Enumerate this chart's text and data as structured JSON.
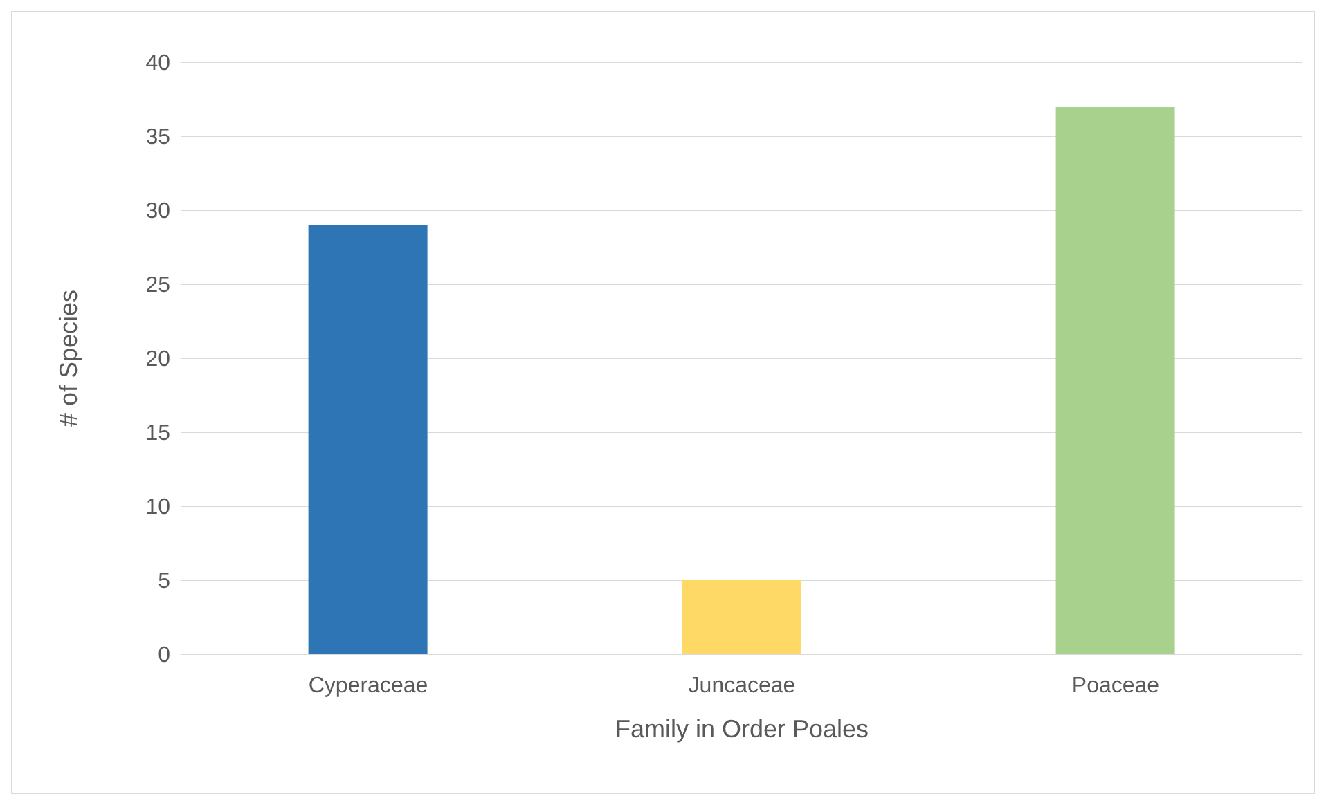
{
  "chart_data": {
    "type": "bar",
    "categories": [
      "Cyperaceae",
      "Juncaceae",
      "Poaceae"
    ],
    "values": [
      29,
      5,
      37
    ],
    "colors": [
      "#2e75b6",
      "#ffd966",
      "#a9d18e"
    ],
    "xlabel": "Family in Order Poales",
    "ylabel": "# of Species",
    "ylim": [
      0,
      40
    ],
    "yticks": [
      0,
      5,
      10,
      15,
      20,
      25,
      30,
      35,
      40
    ],
    "grid": "y",
    "legend": false
  }
}
